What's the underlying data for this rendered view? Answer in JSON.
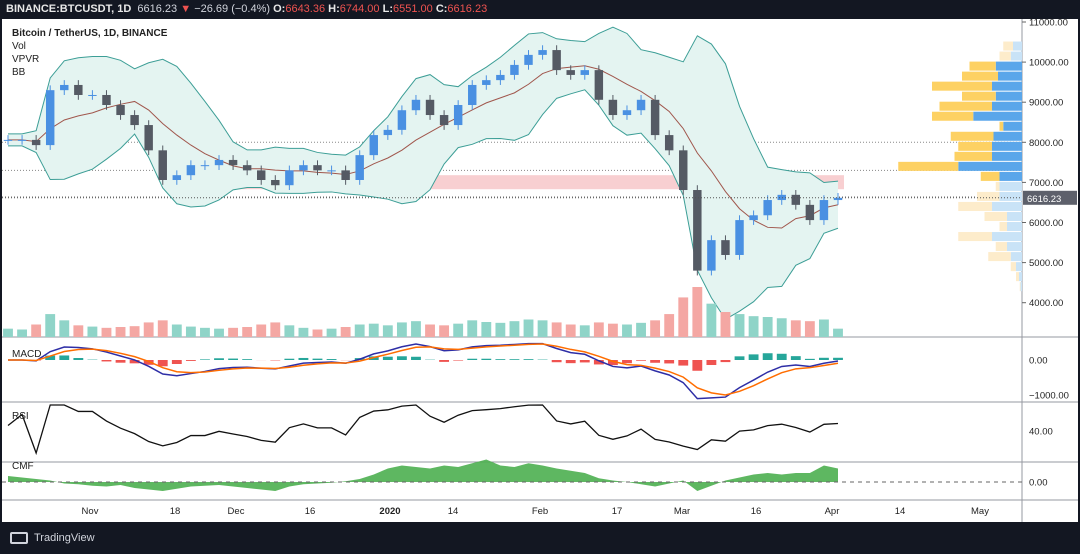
{
  "header": {
    "symbol": "BINANCE:BTCUSDT, 1D",
    "last": "6616.23",
    "arrow": "▼",
    "change": "−26.69 (−0.4%)",
    "o_label": "O:",
    "o": "6643.36",
    "h_label": "H:",
    "h": "6744.00",
    "l_label": "L:",
    "l": "6551.00",
    "c_label": "C:",
    "c": "6616.23"
  },
  "legend": {
    "title": "Bitcoin / TetherUS, 1D, BINANCE",
    "vol": "Vol",
    "vpvr": "VPVR",
    "bb": "BB",
    "macd": "MACD",
    "rsi": "RSI",
    "cmf": "CMF"
  },
  "footer": {
    "brand": "TradingView"
  },
  "colors": {
    "up": "#4a90e2",
    "down": "#555a64",
    "vol_up": "#8fd4c8",
    "vol_down": "#f4a7a3",
    "bb": "#3c9e96",
    "bb_fill": "#e4f4f1",
    "ma": "#a0564c",
    "macd": "#2e2ea6",
    "signal": "#ff6d00",
    "cmf": "#4caf50",
    "zone": "#f8cfd1",
    "vp_up": "#5aa6ea",
    "vp_down": "#fdd163",
    "vp_up_light": "#c9e3f7",
    "vp_down_light": "#fdeccb"
  },
  "chart_data": {
    "type": "candlestick",
    "price_axis": {
      "ticks": [
        "11000.00",
        "10000.00",
        "9000.00",
        "8000.00",
        "7000.00",
        "6000.00",
        "5000.00",
        "4000.00"
      ],
      "range": [
        3700,
        11000
      ],
      "last_label": "6616.23"
    },
    "time_axis": {
      "ticks": [
        "Nov",
        "18",
        "Dec",
        "16",
        "2020",
        "14",
        "Feb",
        "17",
        "Mar",
        "16",
        "Apr",
        "14",
        "May"
      ]
    },
    "macd_axis": {
      "ticks": [
        "0.00",
        "−1000.00"
      ]
    },
    "rsi_axis": {
      "ticks": [
        "40.00"
      ]
    },
    "cmf_axis": {
      "ticks": [
        "0.00"
      ]
    },
    "closes": [
      8060,
      8060,
      7930,
      9300,
      9430,
      9180,
      9180,
      8930,
      8680,
      8430,
      7800,
      7060,
      7180,
      7430,
      7430,
      7560,
      7430,
      7300,
      7060,
      6930,
      7300,
      7430,
      7300,
      7300,
      7060,
      7680,
      8180,
      8310,
      8800,
      9060,
      8680,
      8430,
      8930,
      9430,
      9550,
      9680,
      9930,
      10180,
      10300,
      9800,
      9680,
      9800,
      9060,
      8680,
      8800,
      9060,
      8180,
      7800,
      6810,
      4800,
      5560,
      5190,
      6060,
      6180,
      6560,
      6690,
      6440,
      6060,
      6560,
      6616
    ],
    "volume": [
      20,
      18,
      30,
      55,
      40,
      28,
      25,
      22,
      24,
      26,
      35,
      40,
      30,
      25,
      22,
      20,
      22,
      24,
      30,
      35,
      28,
      22,
      18,
      20,
      24,
      30,
      32,
      28,
      35,
      38,
      30,
      28,
      32,
      40,
      36,
      34,
      38,
      42,
      40,
      35,
      30,
      28,
      35,
      32,
      30,
      34,
      40,
      55,
      95,
      120,
      80,
      60,
      55,
      50,
      48,
      45,
      40,
      38,
      42,
      20
    ],
    "cmf": [
      0.08,
      0.06,
      0.04,
      0.02,
      -0.02,
      -0.03,
      -0.05,
      -0.06,
      -0.04,
      -0.08,
      -0.1,
      -0.12,
      -0.09,
      -0.06,
      -0.05,
      -0.04,
      -0.06,
      -0.08,
      -0.1,
      -0.12,
      -0.06,
      -0.03,
      -0.02,
      -0.01,
      0.01,
      0.04,
      0.1,
      0.18,
      0.22,
      0.2,
      0.18,
      0.22,
      0.2,
      0.25,
      0.3,
      0.22,
      0.2,
      0.25,
      0.22,
      0.18,
      0.15,
      0.12,
      0.05,
      0.02,
      0.0,
      -0.03,
      -0.06,
      -0.02,
      0.02,
      -0.12,
      -0.05,
      0.02,
      0.06,
      0.1,
      0.12,
      0.1,
      0.12,
      0.12,
      0.22,
      0.18
    ],
    "key_levels": [
      8000,
      7300,
      6640
    ],
    "zone": [
      6830,
      7180
    ],
    "vpvr": [
      {
        "price": 10400,
        "up": 12,
        "down": 13,
        "in_va": false
      },
      {
        "price": 10150,
        "up": 15,
        "down": 15,
        "in_va": false
      },
      {
        "price": 9900,
        "up": 35,
        "down": 35,
        "in_va": true
      },
      {
        "price": 9650,
        "up": 32,
        "down": 48,
        "in_va": true
      },
      {
        "price": 9400,
        "up": 40,
        "down": 80,
        "in_va": true
      },
      {
        "price": 9150,
        "up": 35,
        "down": 45,
        "in_va": true
      },
      {
        "price": 8900,
        "up": 40,
        "down": 70,
        "in_va": true
      },
      {
        "price": 8650,
        "up": 65,
        "down": 55,
        "in_va": true
      },
      {
        "price": 8400,
        "up": 25,
        "down": 5,
        "in_va": true
      },
      {
        "price": 8150,
        "up": 38,
        "down": 57,
        "in_va": true
      },
      {
        "price": 7900,
        "up": 40,
        "down": 45,
        "in_va": true
      },
      {
        "price": 7650,
        "up": 40,
        "down": 50,
        "in_va": true
      },
      {
        "price": 7400,
        "up": 85,
        "down": 80,
        "in_va": true
      },
      {
        "price": 7150,
        "up": 30,
        "down": 25,
        "in_va": true
      },
      {
        "price": 6900,
        "up": 30,
        "down": 5,
        "in_va": false
      },
      {
        "price": 6650,
        "up": 30,
        "down": 30,
        "in_va": false
      },
      {
        "price": 6400,
        "up": 40,
        "down": 45,
        "in_va": false
      },
      {
        "price": 6150,
        "up": 20,
        "down": 30,
        "in_va": false
      },
      {
        "price": 5900,
        "up": 20,
        "down": 10,
        "in_va": false
      },
      {
        "price": 5650,
        "up": 40,
        "down": 45,
        "in_va": false
      },
      {
        "price": 5400,
        "up": 20,
        "down": 15,
        "in_va": false
      },
      {
        "price": 5150,
        "up": 15,
        "down": 30,
        "in_va": false
      },
      {
        "price": 4900,
        "up": 8,
        "down": 7,
        "in_va": false
      },
      {
        "price": 4650,
        "up": 4,
        "down": 4,
        "in_va": false
      },
      {
        "price": 4400,
        "up": 2,
        "down": 1,
        "in_va": false
      }
    ]
  }
}
